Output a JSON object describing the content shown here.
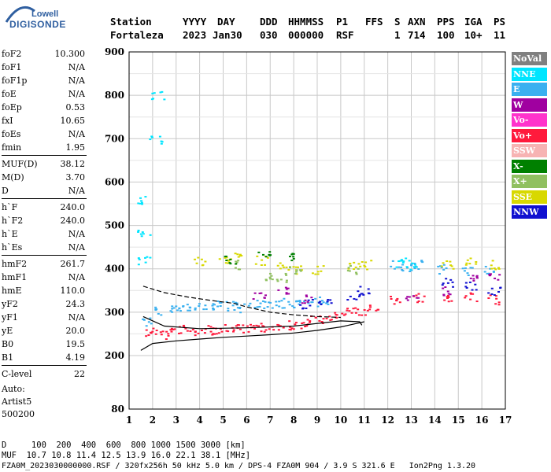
{
  "logo": {
    "line1": "Lowell",
    "line2": "DIGISONDE"
  },
  "header": {
    "labels": [
      "Station",
      "YYYY",
      "DAY",
      "DDD",
      "HHMMSS",
      "P1",
      "FFS",
      "S",
      "AXN",
      "PPS",
      "IGA",
      "PS"
    ],
    "values": [
      "Fortaleza",
      "2023",
      "Jan30",
      "030",
      "000000",
      "RSF",
      "",
      "1",
      "714",
      "100",
      "10+",
      "11"
    ]
  },
  "params": [
    {
      "label": "foF2",
      "value": "10.300"
    },
    {
      "label": "foF1",
      "value": "N/A"
    },
    {
      "label": "foF1p",
      "value": "N/A"
    },
    {
      "label": "foE",
      "value": "N/A"
    },
    {
      "label": "foEp",
      "value": "0.53"
    },
    {
      "label": "fxI",
      "value": "10.65"
    },
    {
      "label": "foEs",
      "value": "N/A"
    },
    {
      "label": "fmin",
      "value": "1.95"
    },
    {
      "label": "MUF(D)",
      "value": "38.12"
    },
    {
      "label": "M(D)",
      "value": "3.70"
    },
    {
      "label": "D",
      "value": "N/A"
    },
    {
      "label": "h`F",
      "value": "240.0"
    },
    {
      "label": "h`F2",
      "value": "240.0"
    },
    {
      "label": "h`E",
      "value": "N/A"
    },
    {
      "label": "h`Es",
      "value": "N/A"
    },
    {
      "label": "hmF2",
      "value": "261.7"
    },
    {
      "label": "hmF1",
      "value": "N/A"
    },
    {
      "label": "hmE",
      "value": "110.0"
    },
    {
      "label": "yF2",
      "value": "24.3"
    },
    {
      "label": "yF1",
      "value": "N/A"
    },
    {
      "label": "yE",
      "value": "20.0"
    },
    {
      "label": "B0",
      "value": "19.5"
    },
    {
      "label": "B1",
      "value": "4.19"
    },
    {
      "label": "C-level",
      "value": "22"
    }
  ],
  "auto": {
    "line1": "Auto:",
    "line2": "Artist5",
    "line3": "500200"
  },
  "legend": [
    {
      "label": "NoVal",
      "color": "#808080"
    },
    {
      "label": "NNE",
      "color": "#00e5ff"
    },
    {
      "label": "E",
      "color": "#3ab0f0"
    },
    {
      "label": "W",
      "color": "#a000a0"
    },
    {
      "label": "Vo-",
      "color": "#ff33cc"
    },
    {
      "label": "Vo+",
      "color": "#ff1a3c"
    },
    {
      "label": "SSW",
      "color": "#f7b3b3"
    },
    {
      "label": "X-",
      "color": "#008000"
    },
    {
      "label": "X+",
      "color": "#90c060"
    },
    {
      "label": "SSE",
      "color": "#d8d800"
    },
    {
      "label": "NNW",
      "color": "#1010d0"
    }
  ],
  "footer": {
    "line1": "D     100  200  400  600  800 1000 1500 3000 [km]",
    "line2": "MUF  10.7 10.8 11.4 12.5 13.9 16.0 22.1 38.1 [MHz]",
    "line3": "FZA0M_2023030000000.RSF / 320fx256h 50 kHz 5.0 km / DPS-4 FZA0M 904 / 3.9 S 321.6 E   Ion2Png 1.3.20"
  },
  "chart_data": {
    "type": "scatter",
    "xlim": [
      1,
      17
    ],
    "ylim": [
      80,
      900
    ],
    "x_ticks": [
      1,
      2,
      3,
      4,
      5,
      6,
      7,
      8,
      9,
      10,
      11,
      12,
      13,
      14,
      15,
      16,
      17
    ],
    "y_ticks": [
      80,
      200,
      300,
      400,
      500,
      600,
      700,
      800,
      900
    ],
    "grid": true,
    "series": [
      {
        "name": "Vo+",
        "color": "#ff1a3c",
        "points": [
          [
            1.9,
            255
          ],
          [
            2.3,
            250
          ],
          [
            2.8,
            258
          ],
          [
            3.3,
            262
          ],
          [
            3.8,
            256
          ],
          [
            4.3,
            260
          ],
          [
            4.8,
            262
          ],
          [
            5.3,
            265
          ],
          [
            5.8,
            262
          ],
          [
            6.3,
            262
          ],
          [
            6.8,
            266
          ],
          [
            7.3,
            270
          ],
          [
            7.8,
            272
          ],
          [
            8.3,
            275
          ],
          [
            8.8,
            282
          ],
          [
            9.3,
            285
          ],
          [
            9.8,
            290
          ],
          [
            10.3,
            300
          ],
          [
            10.8,
            305
          ],
          [
            11.3,
            310
          ],
          [
            12.3,
            330
          ],
          [
            13.3,
            335
          ],
          [
            14.5,
            330
          ],
          [
            15.5,
            335
          ],
          [
            16.5,
            330
          ]
        ]
      },
      {
        "name": "E",
        "color": "#3ab0f0",
        "points": [
          [
            1.8,
            280
          ],
          [
            2.3,
            305
          ],
          [
            2.8,
            310
          ],
          [
            3.3,
            310
          ],
          [
            3.8,
            312
          ],
          [
            4.3,
            315
          ],
          [
            4.8,
            318
          ],
          [
            5.3,
            315
          ],
          [
            5.8,
            312
          ],
          [
            6.3,
            318
          ],
          [
            6.8,
            320
          ],
          [
            7.3,
            322
          ],
          [
            7.8,
            318
          ],
          [
            8.3,
            320
          ],
          [
            8.8,
            325
          ],
          [
            9.3,
            328
          ],
          [
            12.3,
            410
          ],
          [
            12.8,
            405
          ],
          [
            13.3,
            410
          ],
          [
            14.3,
            400
          ],
          [
            15.3,
            395
          ],
          [
            16.3,
            400
          ]
        ]
      },
      {
        "name": "SSE",
        "color": "#d8d800",
        "points": [
          [
            4.0,
            420
          ],
          [
            5.0,
            420
          ],
          [
            5.5,
            430
          ],
          [
            6.6,
            420
          ],
          [
            7.5,
            405
          ],
          [
            8.2,
            400
          ],
          [
            9.0,
            400
          ],
          [
            10.5,
            410
          ],
          [
            11.0,
            410
          ],
          [
            14.5,
            410
          ],
          [
            15.5,
            420
          ],
          [
            16.5,
            410
          ]
        ]
      },
      {
        "name": "NNW",
        "color": "#1010d0",
        "points": [
          [
            8.5,
            320
          ],
          [
            9.3,
            320
          ],
          [
            10.5,
            340
          ],
          [
            11.0,
            350
          ],
          [
            14.5,
            370
          ],
          [
            15.5,
            360
          ],
          [
            16.5,
            350
          ]
        ]
      },
      {
        "name": "W",
        "color": "#a000a0",
        "points": [
          [
            6.5,
            340
          ],
          [
            7.5,
            350
          ],
          [
            8.5,
            330
          ],
          [
            13.0,
            330
          ],
          [
            14.5,
            350
          ],
          [
            15.5,
            380
          ],
          [
            16.5,
            380
          ]
        ]
      },
      {
        "name": "X+",
        "color": "#90c060",
        "points": [
          [
            5.5,
            410
          ],
          [
            6.8,
            380
          ],
          [
            7.5,
            380
          ],
          [
            8.0,
            400
          ],
          [
            10.5,
            400
          ]
        ]
      },
      {
        "name": "NNE",
        "color": "#00e5ff",
        "points": [
          [
            1.6,
            560
          ],
          [
            1.6,
            480
          ],
          [
            1.6,
            420
          ],
          [
            2.1,
            700
          ],
          [
            2.2,
            800
          ],
          [
            12.5,
            415
          ],
          [
            13.0,
            410
          ]
        ]
      },
      {
        "name": "X-",
        "color": "#008000",
        "points": [
          [
            5.3,
            420
          ],
          [
            6.7,
            430
          ],
          [
            8.0,
            430
          ]
        ]
      }
    ],
    "trace_curves": [
      {
        "points": [
          [
            1.5,
            212
          ],
          [
            2.0,
            228
          ],
          [
            3.0,
            234
          ],
          [
            4.0,
            238
          ],
          [
            5.0,
            242
          ],
          [
            6.0,
            245
          ],
          [
            7.0,
            248
          ],
          [
            8.0,
            252
          ],
          [
            9.0,
            258
          ],
          [
            10.0,
            266
          ],
          [
            10.5,
            272
          ],
          [
            11.0,
            278
          ]
        ]
      },
      {
        "points": [
          [
            1.6,
            290
          ],
          [
            2.5,
            268
          ],
          [
            4.0,
            262
          ],
          [
            6.0,
            264
          ],
          [
            8.0,
            268
          ],
          [
            10.0,
            280
          ],
          [
            10.8,
            278
          ],
          [
            10.9,
            270
          ]
        ]
      },
      {
        "points": [
          [
            1.6,
            360
          ],
          [
            2.5,
            345
          ],
          [
            3.5,
            335
          ],
          [
            4.5,
            327
          ],
          [
            5.5,
            320
          ],
          [
            6.0,
            312
          ],
          [
            6.5,
            306
          ],
          [
            7.0,
            300
          ],
          [
            8.0,
            294
          ],
          [
            9.0,
            290
          ],
          [
            10.0,
            288
          ]
        ]
      }
    ]
  }
}
